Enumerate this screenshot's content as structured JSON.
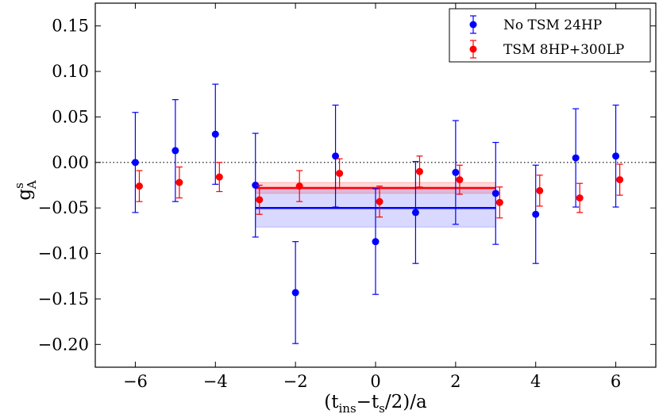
{
  "chart_data": {
    "type": "scatter",
    "title": "",
    "xlabel": "(t_ins − t_s/2)/a",
    "xlabel_parts": {
      "open": "(t",
      "sub1": "ins",
      "minus": "−t",
      "sub2": "s",
      "rest": "/2)/a"
    },
    "ylabel": "g_A^s",
    "ylabel_parts": {
      "base": "g",
      "sup": "s",
      "sub": "A"
    },
    "xlim": [
      -7,
      7
    ],
    "ylim": [
      -0.225,
      0.175
    ],
    "xticks": [
      -6,
      -4,
      -2,
      0,
      2,
      4,
      6
    ],
    "xtick_labels": [
      "−6",
      "−4",
      "−2",
      "0",
      "2",
      "4",
      "6"
    ],
    "yticks": [
      0.15,
      0.1,
      0.05,
      0.0,
      -0.05,
      -0.1,
      -0.15,
      -0.2
    ],
    "ytick_labels": [
      "0.15",
      "0.10",
      "0.05",
      "0.00",
      "−0.05",
      "−0.10",
      "−0.15",
      "−0.20"
    ],
    "zero_line": {
      "y": 0,
      "style": "dotted"
    },
    "legend_position": "top-right",
    "series": [
      {
        "name": "No TSM 24HP",
        "color": "#0000ff",
        "x": [
          -6,
          -5,
          -4,
          -3,
          -2,
          -1,
          0,
          1,
          2,
          3,
          4,
          5,
          6
        ],
        "y": [
          0.0,
          0.013,
          0.031,
          -0.025,
          -0.143,
          0.007,
          -0.087,
          -0.055,
          -0.011,
          -0.034,
          -0.057,
          0.005,
          0.007
        ],
        "err": [
          0.055,
          0.056,
          0.055,
          0.057,
          0.056,
          0.056,
          0.058,
          0.056,
          0.057,
          0.056,
          0.054,
          0.054,
          0.056
        ],
        "fit": {
          "x_range": [
            -3,
            3
          ],
          "value": -0.05,
          "band": [
            -0.071,
            -0.029
          ]
        }
      },
      {
        "name": "TSM 8HP+300LP",
        "color": "#ff0000",
        "x": [
          -5.9,
          -4.9,
          -3.9,
          -2.9,
          -1.9,
          -0.9,
          0.1,
          1.1,
          2.1,
          3.1,
          4.1,
          5.1,
          6.1
        ],
        "y": [
          -0.026,
          -0.022,
          -0.016,
          -0.041,
          -0.026,
          -0.012,
          -0.043,
          -0.01,
          -0.019,
          -0.044,
          -0.031,
          -0.039,
          -0.019
        ],
        "err": [
          0.017,
          0.017,
          0.016,
          0.016,
          0.017,
          0.016,
          0.017,
          0.017,
          0.016,
          0.017,
          0.017,
          0.016,
          0.017
        ],
        "fit": {
          "x_range": [
            -3,
            3
          ],
          "value": -0.028,
          "band": [
            -0.034,
            -0.022
          ]
        }
      }
    ]
  }
}
